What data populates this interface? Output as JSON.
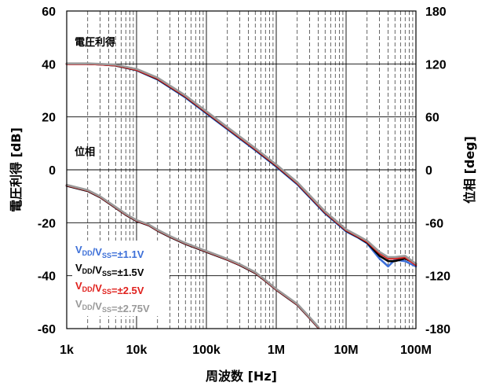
{
  "chart_data": {
    "type": "line",
    "title": "",
    "xlabel": "周波数 [Hz]",
    "ylabel_left": "電圧利得 [dB]",
    "ylabel_right": "位相 [deg]",
    "x_scale": "log",
    "xlim": [
      1000,
      100000000
    ],
    "ylim_left": [
      -60,
      60
    ],
    "ylim_right": [
      -180,
      180
    ],
    "x_ticks": [
      {
        "value": 1000,
        "label": "1k"
      },
      {
        "value": 10000,
        "label": "10k"
      },
      {
        "value": 100000,
        "label": "100k"
      },
      {
        "value": 1000000,
        "label": "1M"
      },
      {
        "value": 10000000,
        "label": "10M"
      },
      {
        "value": 100000000,
        "label": "100M"
      }
    ],
    "y_ticks_left": [
      {
        "value": 60,
        "label": "60"
      },
      {
        "value": 40,
        "label": "40"
      },
      {
        "value": 20,
        "label": "20"
      },
      {
        "value": 0,
        "label": "0"
      },
      {
        "value": -20,
        "label": "-20"
      },
      {
        "value": -40,
        "label": "-40"
      },
      {
        "value": -60,
        "label": "-60"
      }
    ],
    "y_ticks_right": [
      {
        "value": 180,
        "label": "180"
      },
      {
        "value": 120,
        "label": "120"
      },
      {
        "value": 60,
        "label": "60"
      },
      {
        "value": 0,
        "label": "0"
      },
      {
        "value": -60,
        "label": "-60"
      },
      {
        "value": -120,
        "label": "-120"
      },
      {
        "value": -180,
        "label": "-180"
      }
    ],
    "grid": true,
    "annotations": [
      {
        "text": "電圧利得",
        "anchor_x": 1300,
        "anchor_y": 47
      },
      {
        "text": "位相",
        "anchor_x": 1300,
        "anchor_y": 5.5
      }
    ],
    "legend_placement": "bottom-left",
    "gain_series": [
      {
        "name": "VDD/VSS=±1.1V",
        "color": "#3c6fd8",
        "x": [
          1000,
          2000,
          3000,
          5000,
          10000,
          20000,
          50000,
          100000,
          200000,
          500000,
          1000000,
          2000000,
          5000000,
          10000000,
          15000000,
          20000000,
          30000000,
          40000000,
          50000000,
          70000000,
          100000000
        ],
        "y": [
          40,
          40,
          39.8,
          39.4,
          37.6,
          34.1,
          27.3,
          21.3,
          15.3,
          7.4,
          1.2,
          -5.5,
          -16.5,
          -23.3,
          -25.7,
          -27.8,
          -33.5,
          -36.5,
          -34,
          -34.5,
          -36.5
        ]
      },
      {
        "name": "VDD/VSS=±1.5V",
        "color": "#000000",
        "x": [
          1000,
          2000,
          3000,
          5000,
          10000,
          20000,
          50000,
          100000,
          200000,
          500000,
          1000000,
          2000000,
          5000000,
          10000000,
          15000000,
          20000000,
          30000000,
          40000000,
          50000000,
          70000000,
          100000000
        ],
        "y": [
          40,
          40,
          39.8,
          39.4,
          37.7,
          34.3,
          27.6,
          21.6,
          15.6,
          7.7,
          1.5,
          -5.2,
          -16.2,
          -23,
          -25.5,
          -27.5,
          -32.5,
          -34.5,
          -34.5,
          -33.5,
          -35.5
        ]
      },
      {
        "name": "VDD/VSS=±2.5V",
        "color": "#e0201c",
        "x": [
          1000,
          2000,
          3000,
          5000,
          10000,
          20000,
          50000,
          100000,
          200000,
          500000,
          1000000,
          2000000,
          5000000,
          10000000,
          15000000,
          20000000,
          30000000,
          40000000,
          50000000,
          70000000,
          100000000
        ],
        "y": [
          40,
          40,
          39.8,
          39.5,
          37.8,
          34.5,
          27.8,
          21.8,
          15.8,
          7.9,
          1.7,
          -5,
          -16,
          -22.8,
          -25.3,
          -27.2,
          -31.5,
          -33.5,
          -33.5,
          -33,
          -36
        ]
      },
      {
        "name": "VDD/VSS=±2.75V",
        "color": "#999999",
        "x": [
          1000,
          2000,
          3000,
          5000,
          10000,
          20000,
          50000,
          100000,
          200000,
          500000,
          1000000,
          2000000,
          5000000,
          10000000,
          15000000,
          20000000,
          30000000,
          40000000,
          50000000,
          70000000,
          100000000
        ],
        "y": [
          40.2,
          40.2,
          40,
          39.7,
          38.1,
          34.8,
          28.1,
          22.1,
          16.1,
          8.2,
          2,
          -4.7,
          -15.7,
          -22.5,
          -25,
          -26.8,
          -31,
          -33,
          -33,
          -32.5,
          -35.5
        ]
      }
    ],
    "phase_series": [
      {
        "name": "VDD/VSS=±1.1V",
        "color": "#3c6fd8",
        "x": [
          1000,
          2000,
          3000,
          5000,
          7000,
          10000,
          15000,
          20000,
          30000,
          50000,
          100000,
          200000,
          300000,
          500000,
          700000,
          1000000,
          2000000,
          3000000,
          4000000
        ],
        "y": [
          -18,
          -24,
          -31,
          -43,
          -51,
          -58,
          -63,
          -69,
          -76,
          -84,
          -93,
          -102,
          -108,
          -117,
          -126,
          -136,
          -153,
          -168,
          -179
        ]
      },
      {
        "name": "VDD/VSS=±1.5V",
        "color": "#000000",
        "x": [
          1000,
          2000,
          3000,
          5000,
          7000,
          10000,
          15000,
          20000,
          30000,
          50000,
          100000,
          200000,
          300000,
          500000,
          700000,
          1000000,
          2000000,
          3000000,
          4000000
        ],
        "y": [
          -18,
          -24,
          -31,
          -43,
          -51,
          -58,
          -63,
          -69,
          -76,
          -84,
          -93,
          -102,
          -108,
          -117,
          -126,
          -136,
          -153,
          -168,
          -179
        ]
      },
      {
        "name": "VDD/VSS=±2.5V",
        "color": "#e0201c",
        "x": [
          1000,
          2000,
          3000,
          5000,
          7000,
          10000,
          15000,
          20000,
          30000,
          50000,
          100000,
          200000,
          300000,
          500000,
          700000,
          1000000,
          2000000,
          3000000,
          4000000
        ],
        "y": [
          -17.5,
          -23.5,
          -30.5,
          -42.5,
          -50.5,
          -57.5,
          -62.5,
          -68.5,
          -75.5,
          -83.5,
          -92.5,
          -101.5,
          -107.5,
          -116.5,
          -125.5,
          -135.5,
          -152.5,
          -167.5,
          -178.5
        ]
      },
      {
        "name": "VDD/VSS=±2.75V",
        "color": "#999999",
        "x": [
          1000,
          2000,
          3000,
          5000,
          7000,
          10000,
          15000,
          20000,
          30000,
          50000,
          100000,
          200000,
          300000,
          500000,
          700000,
          1000000,
          2000000,
          3000000,
          4000000
        ],
        "y": [
          -17,
          -23,
          -30,
          -42,
          -50,
          -57,
          -62,
          -68,
          -75,
          -83,
          -92,
          -101,
          -107,
          -116,
          -125,
          -135,
          -152,
          -167,
          -178
        ]
      }
    ],
    "legend": [
      {
        "text_main": "V",
        "sub1": "DD",
        "mid": "/V",
        "sub2": "SS",
        "tail": "=±1.1V",
        "color": "#3c6fd8"
      },
      {
        "text_main": "V",
        "sub1": "DD",
        "mid": "/V",
        "sub2": "SS",
        "tail": "=±1.5V",
        "color": "#000000"
      },
      {
        "text_main": "V",
        "sub1": "DD",
        "mid": "/V",
        "sub2": "SS",
        "tail": "=±2.5V",
        "color": "#e0201c"
      },
      {
        "text_main": "V",
        "sub1": "DD",
        "mid": "/V",
        "sub2": "SS",
        "tail": "=±2.75V",
        "color": "#999999"
      }
    ]
  }
}
